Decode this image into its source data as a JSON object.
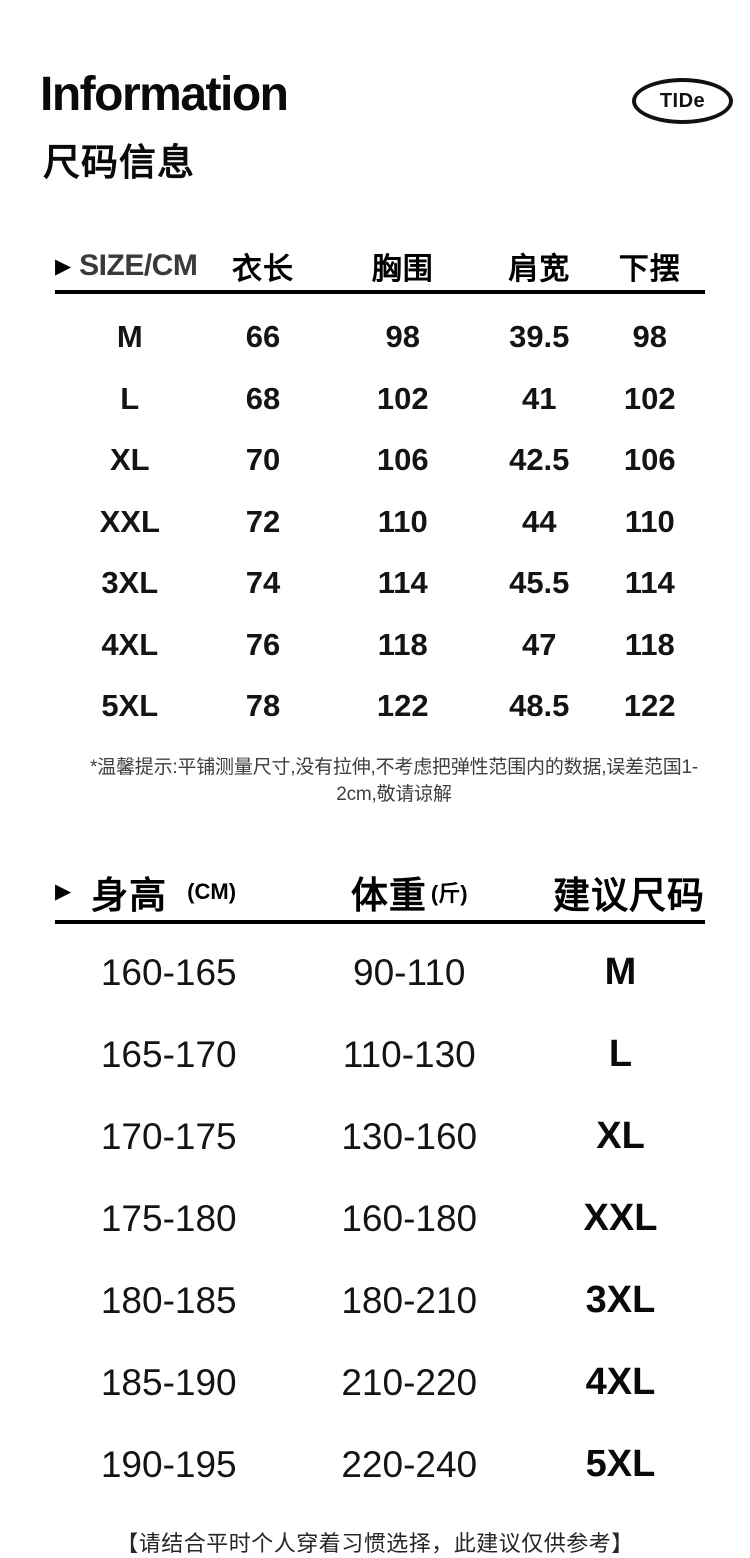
{
  "page": {
    "title_en": "Information",
    "title_cn": "尺码信息",
    "brand": "TIDe"
  },
  "colors": {
    "background": "#ffffff",
    "text": "#111111",
    "size_cm_header": "#3a3a3a",
    "rule": "#000000"
  },
  "size_table": {
    "header": {
      "size_label": "SIZE/CM",
      "cols": [
        "衣长",
        "胸围",
        "肩宽",
        "下摆"
      ]
    },
    "rows": [
      {
        "size": "M",
        "values": [
          "66",
          "98",
          "39.5",
          "98"
        ]
      },
      {
        "size": "L",
        "values": [
          "68",
          "102",
          "41",
          "102"
        ]
      },
      {
        "size": "XL",
        "values": [
          "70",
          "106",
          "42.5",
          "106"
        ]
      },
      {
        "size": "XXL",
        "values": [
          "72",
          "110",
          "44",
          "110"
        ]
      },
      {
        "size": "3XL",
        "values": [
          "74",
          "114",
          "45.5",
          "114"
        ]
      },
      {
        "size": "4XL",
        "values": [
          "76",
          "118",
          "47",
          "118"
        ]
      },
      {
        "size": "5XL",
        "values": [
          "78",
          "122",
          "48.5",
          "122"
        ]
      }
    ],
    "note": "*温馨提示:平铺测量尺寸,没有拉伸,不考虑把弹性范围内的数据,误差范国1-2cm,敬请谅解"
  },
  "suggest_table": {
    "header": {
      "height_label": "身高",
      "height_unit": "(CM)",
      "weight_label": "体重",
      "weight_unit": "(斤)",
      "suggest_label": "建议尺码"
    },
    "rows": [
      {
        "height": "160-165",
        "weight": "90-110",
        "size": "M"
      },
      {
        "height": "165-170",
        "weight": "110-130",
        "size": "L"
      },
      {
        "height": "170-175",
        "weight": "130-160",
        "size": "XL"
      },
      {
        "height": "175-180",
        "weight": "160-180",
        "size": "XXL"
      },
      {
        "height": "180-185",
        "weight": "180-210",
        "size": "3XL"
      },
      {
        "height": "185-190",
        "weight": "210-220",
        "size": "4XL"
      },
      {
        "height": "190-195",
        "weight": "220-240",
        "size": "5XL"
      }
    ]
  },
  "footer_note": "【请结合平时个人穿着习惯选择，此建议仅供参考】"
}
